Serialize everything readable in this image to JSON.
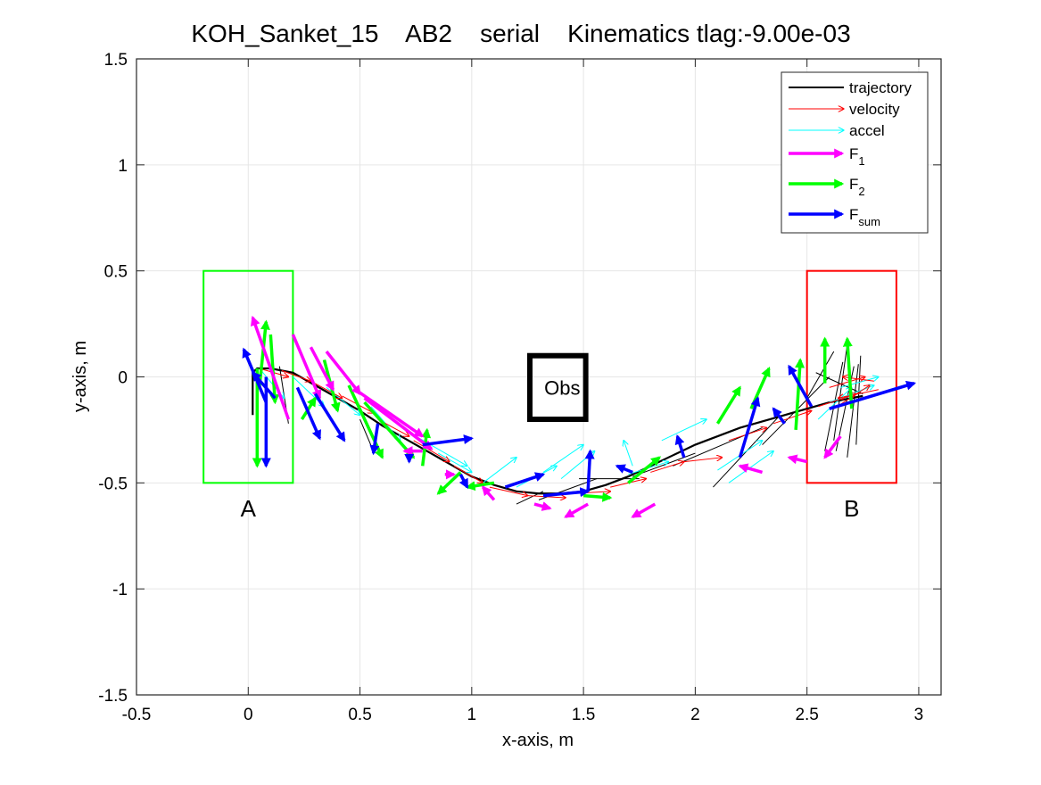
{
  "chart_data": {
    "type": "line",
    "title": "KOH_Sanket_15    AB2    serial    Kinematics tlag:-9.00e-03",
    "xlabel": "x-axis, m",
    "ylabel": "y-axis, m",
    "xlim": [
      -0.5,
      3.1
    ],
    "ylim": [
      -1.5,
      1.5
    ],
    "xticks": [
      -0.5,
      0,
      0.5,
      1,
      1.5,
      2,
      2.5,
      3
    ],
    "xtick_labels": [
      "-0.5",
      "0",
      "0.5",
      "1",
      "1.5",
      "2",
      "2.5",
      "3"
    ],
    "yticks": [
      -1.5,
      -1,
      -0.5,
      0,
      0.5,
      1,
      1.5
    ],
    "ytick_labels": [
      "-1.5",
      "-1",
      "-0.5",
      "0",
      "0.5",
      "1",
      "1.5"
    ],
    "grid": true,
    "legend": {
      "position": "top-right",
      "entries": [
        {
          "key": "trajectory",
          "label": "trajectory",
          "sub": "",
          "color": "#000000",
          "style": "line"
        },
        {
          "key": "velocity",
          "label": "velocity",
          "sub": "",
          "color": "#ff0000",
          "style": "thin-arrow"
        },
        {
          "key": "accel",
          "label": "accel",
          "sub": "",
          "color": "#00ffff",
          "style": "thin-arrow"
        },
        {
          "key": "f1",
          "label": "F",
          "sub": "1",
          "color": "#ff00ff",
          "style": "thick-arrow"
        },
        {
          "key": "f2",
          "label": "F",
          "sub": "2",
          "color": "#00ff00",
          "style": "thick-arrow"
        },
        {
          "key": "fsum",
          "label": "F",
          "sub": "sum",
          "color": "#0000ff",
          "style": "thick-arrow"
        }
      ]
    },
    "regions": [
      {
        "name": "A",
        "label": "A",
        "x": [
          -0.2,
          0.2
        ],
        "y": [
          -0.5,
          0.5
        ],
        "color": "#00ff00",
        "label_at": [
          0,
          -0.62
        ]
      },
      {
        "name": "B",
        "label": "B",
        "x": [
          2.5,
          2.9
        ],
        "y": [
          -0.5,
          0.5
        ],
        "color": "#ff0000",
        "label_at": [
          2.7,
          -0.62
        ]
      }
    ],
    "obstacle": {
      "label": "Obs",
      "x": [
        1.26,
        1.51
      ],
      "y": [
        -0.2,
        0.1
      ],
      "color": "#000000"
    },
    "trajectory": {
      "x": [
        0.02,
        0.02,
        0.04,
        0.1,
        0.2,
        0.3,
        0.4,
        0.5,
        0.6,
        0.7,
        0.8,
        0.9,
        1.0,
        1.1,
        1.2,
        1.3,
        1.4,
        1.5,
        1.6,
        1.7,
        1.8,
        1.9,
        2.0,
        2.1,
        2.2,
        2.3,
        2.4,
        2.5,
        2.6,
        2.7,
        2.75
      ],
      "y": [
        -0.18,
        0.02,
        0.04,
        0.04,
        0.02,
        -0.04,
        -0.1,
        -0.16,
        -0.23,
        -0.29,
        -0.35,
        -0.41,
        -0.47,
        -0.51,
        -0.54,
        -0.55,
        -0.55,
        -0.54,
        -0.51,
        -0.47,
        -0.42,
        -0.37,
        -0.32,
        -0.28,
        -0.24,
        -0.21,
        -0.18,
        -0.15,
        -0.12,
        -0.1,
        -0.09
      ]
    },
    "vectors": {
      "velocity": [
        [
          0.05,
          0.04,
          0.18,
          0.0
        ],
        [
          0.15,
          0.03,
          0.28,
          -0.02
        ],
        [
          0.28,
          -0.02,
          0.42,
          -0.1
        ],
        [
          0.42,
          -0.09,
          0.56,
          -0.17
        ],
        [
          0.58,
          -0.2,
          0.72,
          -0.28
        ],
        [
          0.74,
          -0.3,
          0.9,
          -0.4
        ],
        [
          0.92,
          -0.42,
          1.05,
          -0.5
        ],
        [
          1.08,
          -0.52,
          1.25,
          -0.56
        ],
        [
          1.25,
          -0.56,
          1.42,
          -0.57
        ],
        [
          1.45,
          -0.55,
          1.62,
          -0.54
        ],
        [
          1.62,
          -0.52,
          1.78,
          -0.48
        ],
        [
          1.8,
          -0.45,
          1.95,
          -0.4
        ],
        [
          1.95,
          -0.4,
          2.12,
          -0.38
        ],
        [
          2.15,
          -0.3,
          2.32,
          -0.24
        ],
        [
          2.35,
          -0.22,
          2.52,
          -0.16
        ],
        [
          2.55,
          -0.14,
          2.72,
          -0.08
        ],
        [
          2.6,
          -0.05,
          2.76,
          0.0
        ],
        [
          2.62,
          -0.15,
          2.78,
          -0.04
        ],
        [
          2.8,
          -0.02,
          2.66,
          0.0
        ],
        [
          2.82,
          -0.06,
          2.64,
          -0.1
        ]
      ],
      "accel": [
        [
          0.05,
          0.04,
          0.16,
          -0.1
        ],
        [
          0.2,
          0.0,
          0.34,
          -0.14
        ],
        [
          0.35,
          -0.05,
          0.5,
          -0.18
        ],
        [
          0.55,
          -0.14,
          0.68,
          -0.3
        ],
        [
          0.75,
          -0.28,
          0.98,
          -0.42
        ],
        [
          0.85,
          -0.36,
          1.0,
          -0.45
        ],
        [
          1.05,
          -0.5,
          1.2,
          -0.38
        ],
        [
          1.2,
          -0.52,
          1.38,
          -0.42
        ],
        [
          1.32,
          -0.45,
          1.5,
          -0.32
        ],
        [
          1.4,
          -0.48,
          1.55,
          -0.35
        ],
        [
          1.72,
          -0.42,
          1.68,
          -0.3
        ],
        [
          1.7,
          -0.46,
          1.88,
          -0.4
        ],
        [
          1.85,
          -0.3,
          2.05,
          -0.2
        ],
        [
          2.1,
          -0.44,
          2.3,
          -0.3
        ],
        [
          2.15,
          -0.5,
          2.35,
          -0.35
        ],
        [
          2.6,
          -0.12,
          2.8,
          -0.04
        ],
        [
          2.65,
          -0.05,
          2.82,
          0.0
        ],
        [
          2.55,
          -0.2,
          2.7,
          -0.05
        ]
      ],
      "f1": [
        [
          0.18,
          -0.2,
          0.02,
          0.28
        ],
        [
          0.2,
          0.2,
          0.32,
          -0.1
        ],
        [
          0.28,
          0.14,
          0.38,
          -0.06
        ],
        [
          0.35,
          0.12,
          0.5,
          -0.08
        ],
        [
          0.48,
          -0.06,
          0.78,
          -0.28
        ],
        [
          0.52,
          -0.1,
          0.82,
          -0.34
        ],
        [
          0.78,
          -0.35,
          0.7,
          -0.35
        ],
        [
          0.88,
          -0.46,
          0.92,
          -0.46
        ],
        [
          1.1,
          -0.58,
          1.05,
          -0.52
        ],
        [
          1.28,
          -0.6,
          1.35,
          -0.62
        ],
        [
          1.52,
          -0.6,
          1.42,
          -0.66
        ],
        [
          1.82,
          -0.6,
          1.72,
          -0.66
        ],
        [
          2.3,
          -0.45,
          2.2,
          -0.42
        ],
        [
          2.5,
          -0.4,
          2.42,
          -0.38
        ],
        [
          2.65,
          -0.28,
          2.58,
          -0.38
        ]
      ],
      "f2": [
        [
          0.04,
          0.04,
          0.04,
          -0.42
        ],
        [
          0.05,
          -0.05,
          0.08,
          0.26
        ],
        [
          0.1,
          0.2,
          0.12,
          -0.12
        ],
        [
          0.24,
          -0.2,
          0.3,
          -0.1
        ],
        [
          0.34,
          0.08,
          0.4,
          -0.16
        ],
        [
          0.45,
          -0.04,
          0.6,
          -0.38
        ],
        [
          0.52,
          -0.12,
          0.74,
          -0.38
        ],
        [
          0.78,
          -0.42,
          0.8,
          -0.25
        ],
        [
          0.95,
          -0.45,
          0.85,
          -0.55
        ],
        [
          1.1,
          -0.5,
          0.98,
          -0.52
        ],
        [
          1.5,
          -0.56,
          1.62,
          -0.57
        ],
        [
          1.7,
          -0.5,
          1.84,
          -0.38
        ],
        [
          2.1,
          -0.22,
          2.2,
          -0.05
        ],
        [
          2.25,
          -0.15,
          2.33,
          0.04
        ],
        [
          2.45,
          -0.25,
          2.47,
          0.08
        ],
        [
          2.58,
          -0.03,
          2.58,
          0.18
        ],
        [
          2.7,
          -0.15,
          2.68,
          0.18
        ]
      ],
      "fsum": [
        [
          0.08,
          -0.12,
          -0.02,
          0.13
        ],
        [
          0.12,
          -0.1,
          0.02,
          0.02
        ],
        [
          0.08,
          0.0,
          0.08,
          -0.42
        ],
        [
          0.22,
          -0.05,
          0.32,
          -0.29
        ],
        [
          0.3,
          -0.08,
          0.43,
          -0.3
        ],
        [
          0.58,
          -0.22,
          0.56,
          -0.36
        ],
        [
          0.72,
          -0.38,
          0.72,
          -0.4
        ],
        [
          0.78,
          -0.32,
          1.0,
          -0.29
        ],
        [
          0.95,
          -0.46,
          0.98,
          -0.52
        ],
        [
          1.15,
          -0.52,
          1.32,
          -0.46
        ],
        [
          1.32,
          -0.56,
          1.52,
          -0.54
        ],
        [
          1.52,
          -0.54,
          1.53,
          -0.35
        ],
        [
          1.72,
          -0.45,
          1.65,
          -0.42
        ],
        [
          1.95,
          -0.38,
          1.92,
          -0.28
        ],
        [
          2.2,
          -0.38,
          2.28,
          -0.1
        ],
        [
          2.4,
          -0.22,
          2.35,
          -0.15
        ],
        [
          2.52,
          -0.14,
          2.42,
          0.05
        ],
        [
          2.6,
          -0.15,
          2.98,
          -0.03
        ]
      ]
    },
    "stray_segments": [
      [
        0.14,
        0.05,
        0.18,
        -0.22
      ],
      [
        0.5,
        -0.2,
        0.56,
        -0.35
      ],
      [
        1.2,
        -0.6,
        1.32,
        -0.54
      ],
      [
        1.3,
        -0.58,
        1.56,
        -0.48
      ],
      [
        1.48,
        -0.48,
        1.75,
        -0.48
      ],
      [
        1.72,
        -0.47,
        2.0,
        -0.36
      ],
      [
        1.9,
        -0.42,
        2.3,
        -0.24
      ],
      [
        2.08,
        -0.52,
        2.38,
        -0.18
      ],
      [
        2.3,
        -0.32,
        2.6,
        0.0
      ],
      [
        2.5,
        -0.1,
        2.62,
        0.12
      ],
      [
        2.58,
        -0.35,
        2.66,
        0.07
      ],
      [
        2.63,
        -0.35,
        2.71,
        0.05
      ],
      [
        2.68,
        -0.38,
        2.73,
        0.06
      ],
      [
        2.62,
        -0.3,
        2.68,
        0.15
      ],
      [
        2.72,
        -0.32,
        2.74,
        0.1
      ],
      [
        2.54,
        0.02,
        2.75,
        -0.08
      ]
    ]
  }
}
